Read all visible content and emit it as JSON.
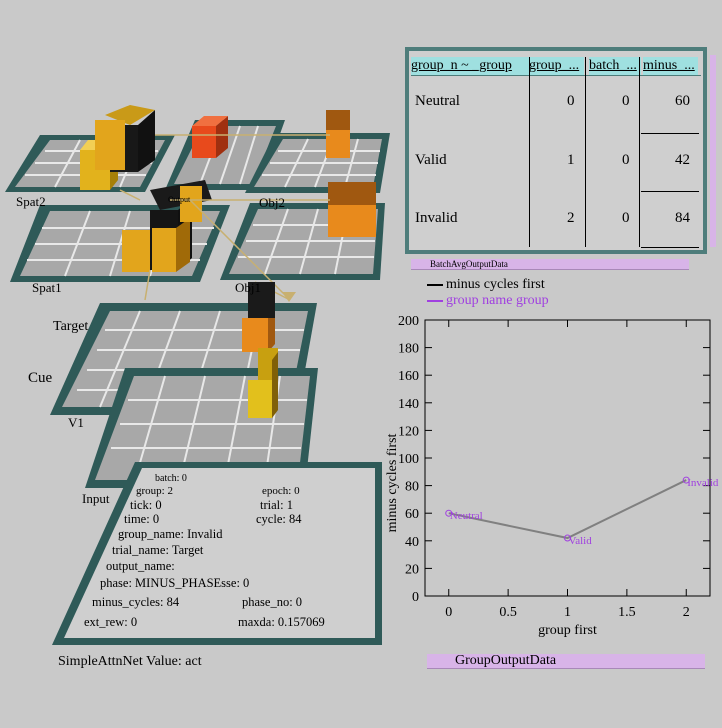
{
  "network": {
    "layers": [
      "Spat2",
      "Obj2",
      "Spat1",
      "Obj1",
      "Target",
      "Cue",
      "V1",
      "Input"
    ],
    "output_label": "Output",
    "title": "SimpleAttnNet Value: act",
    "info": {
      "batch": "batch: 0",
      "epoch": "epoch: 0",
      "group": "group: 2",
      "tick": "tick: 0",
      "trial": "trial: 1",
      "time": "time: 0",
      "cycle": "cycle: 84",
      "group_name": "group_name: Invalid",
      "trial_name": "trial_name: Target",
      "output_name": "output_name:",
      "phase": "phase: MINUS_PHASEsse: 0",
      "minus_cycles": "minus_cycles: 84",
      "phase_no": "phase_no: 0",
      "ext_rew": "ext_rew: 0",
      "maxda": "maxda: 0.157069"
    }
  },
  "table": {
    "headers": [
      "group_n ~ _group",
      "group_...",
      "batch_...",
      "minus_..."
    ],
    "rows": [
      {
        "name": "Neutral",
        "group": "0",
        "batch": "0",
        "minus": "60"
      },
      {
        "name": "Valid",
        "group": "1",
        "batch": "0",
        "minus": "42"
      },
      {
        "name": "Invalid",
        "group": "2",
        "batch": "0",
        "minus": "84"
      }
    ],
    "caption": "BatchAvgOutputData"
  },
  "graph": {
    "legend": [
      {
        "label": "minus cycles first",
        "color": "#000000"
      },
      {
        "label": "group name group",
        "color": "#a040e0"
      }
    ],
    "caption": "GroupOutputData"
  },
  "chart_data": {
    "type": "line",
    "x": [
      0,
      1,
      2
    ],
    "values": [
      60,
      42,
      84
    ],
    "point_labels": [
      "Neutral",
      "Valid",
      "Invalid"
    ],
    "xlabel": "group first",
    "ylabel": "minus cycles first",
    "xlim": [
      -0.2,
      2.2
    ],
    "ylim": [
      0,
      200
    ],
    "xticks": [
      "0",
      "0.5",
      "1",
      "1.5",
      "2"
    ],
    "yticks": [
      "0",
      "20",
      "40",
      "60",
      "80",
      "100",
      "120",
      "140",
      "160",
      "180",
      "200"
    ],
    "line_color": "#808080",
    "label_color": "#a040e0"
  }
}
